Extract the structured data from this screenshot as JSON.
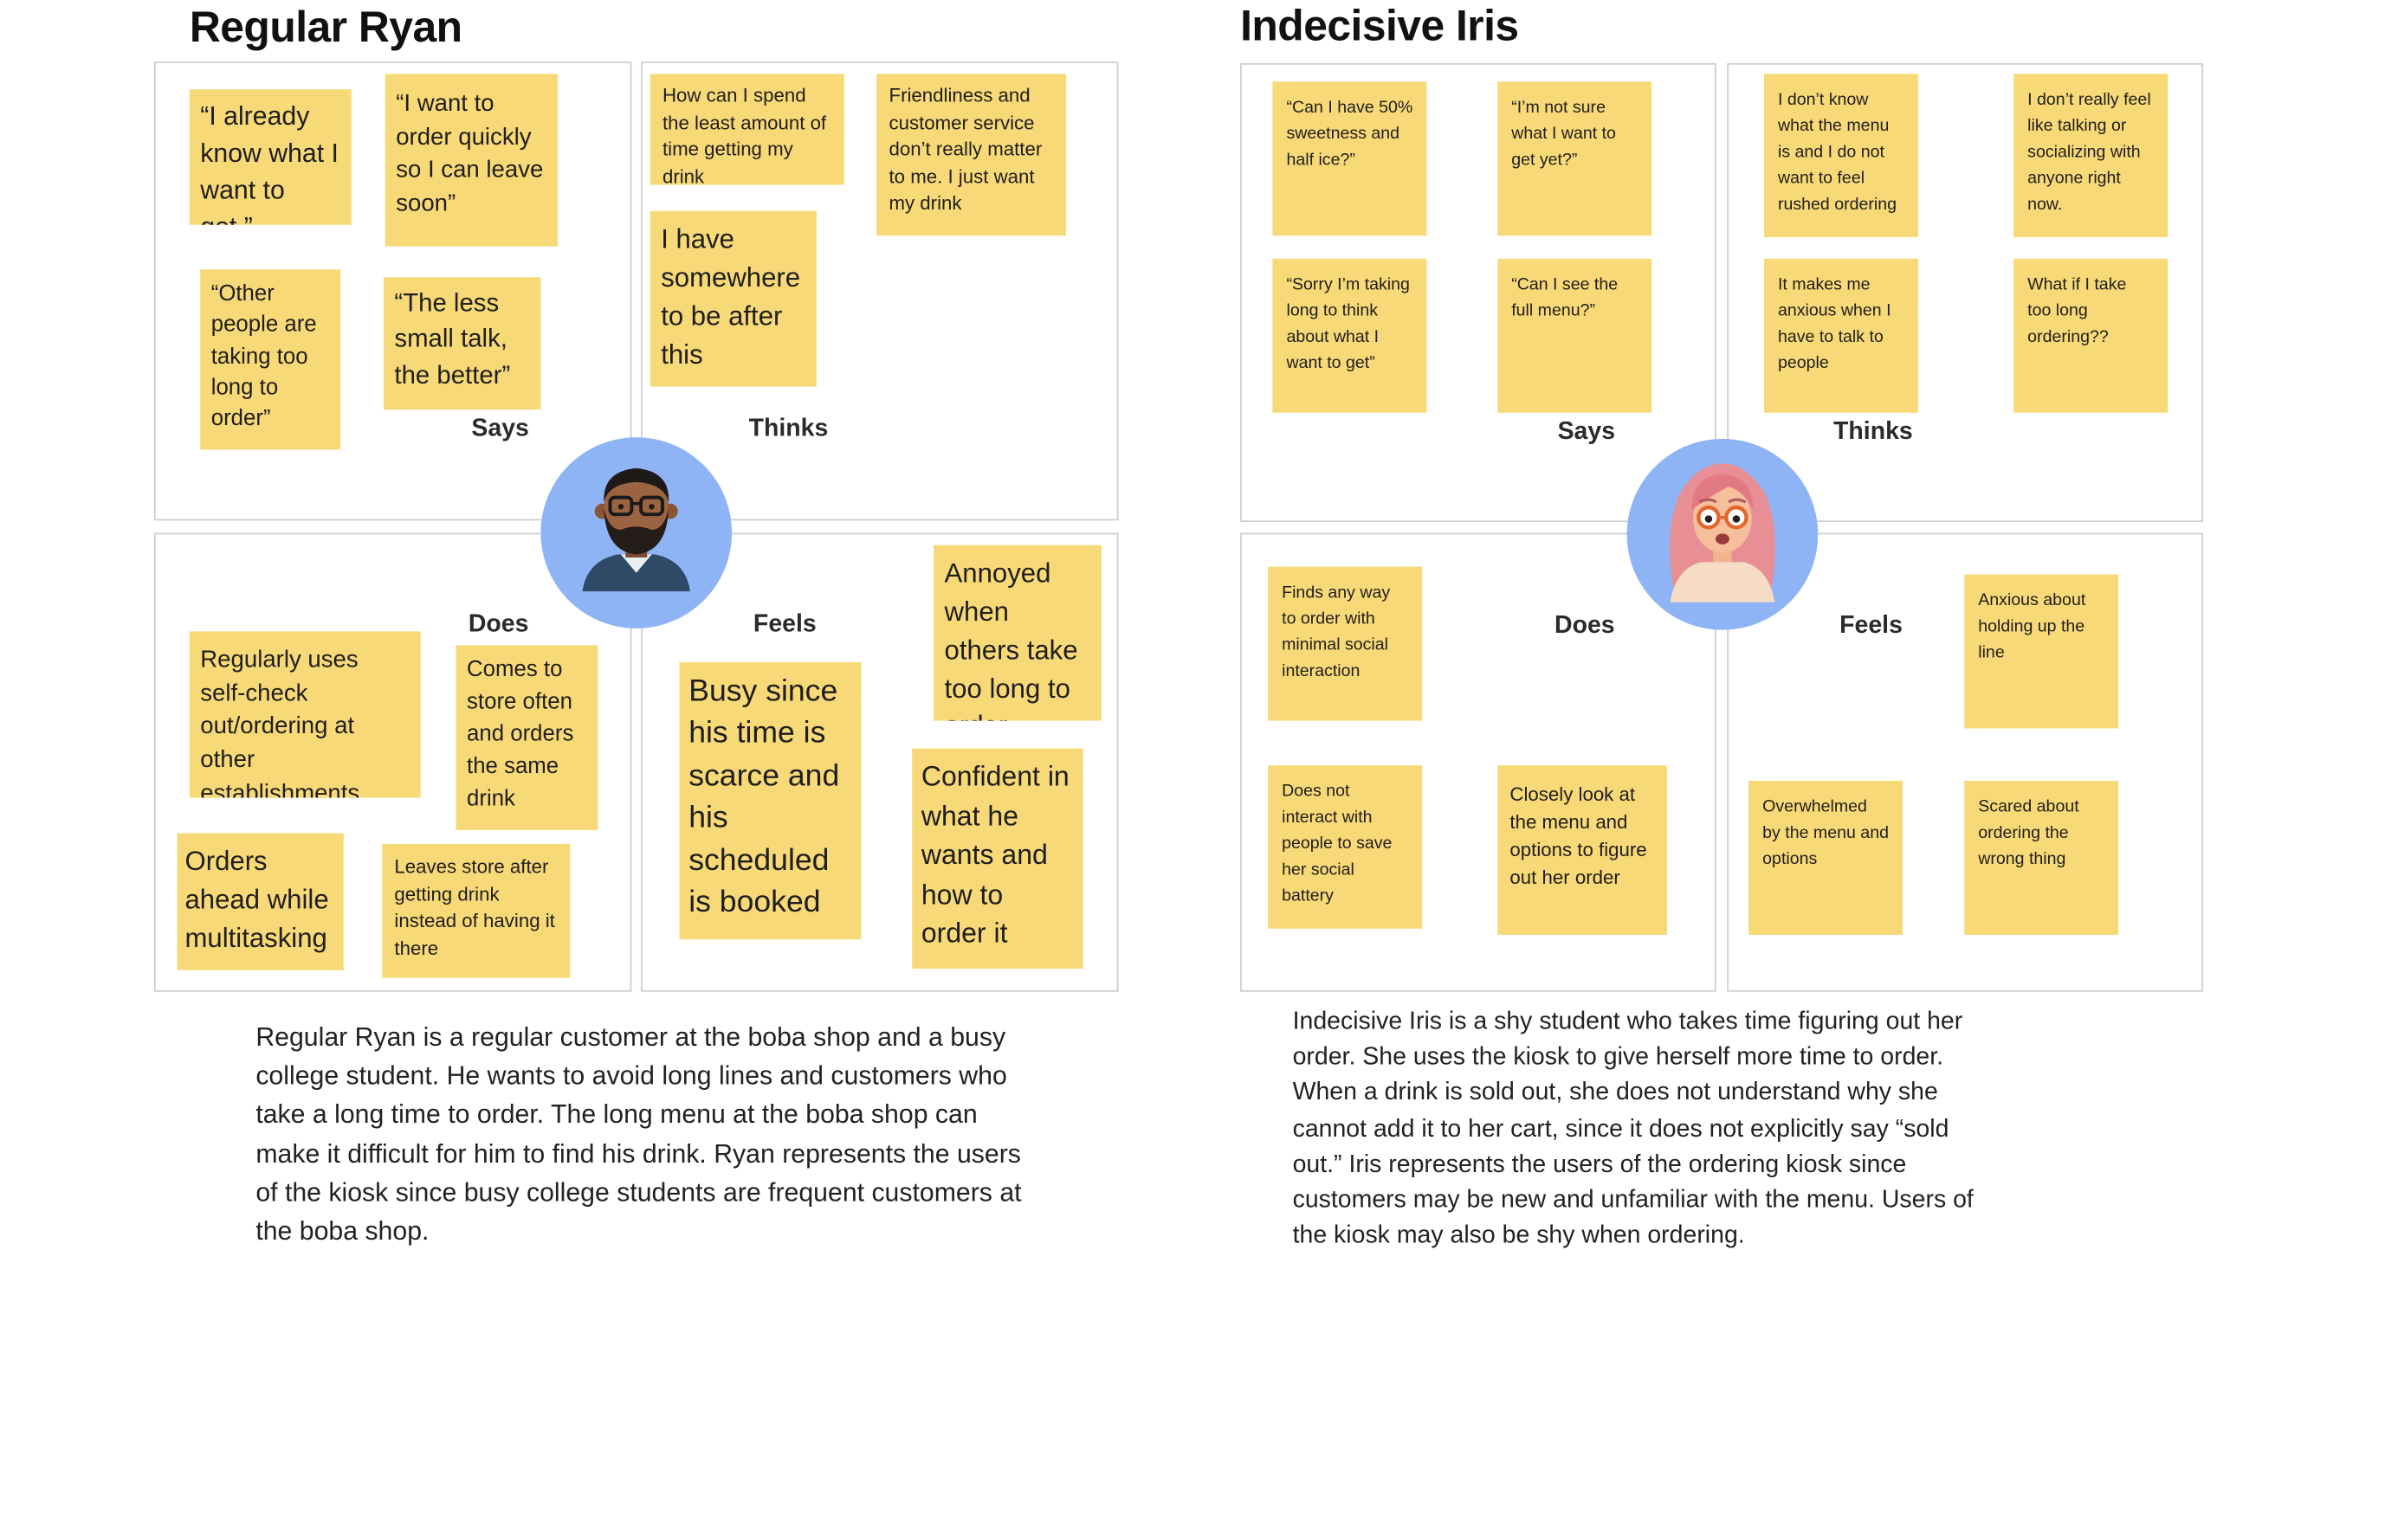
{
  "personas": {
    "ryan": {
      "name": "Regular Ryan",
      "labels": {
        "says": "Says",
        "thinks": "Thinks",
        "does": "Does",
        "feels": "Feels"
      },
      "says": [
        "“I already know what I want to get.”",
        "“I want to order quickly so I can leave soon”",
        "“Other people are taking too long to order”",
        "“The less small talk, the better”"
      ],
      "thinks": [
        "How can I spend the least amount of time getting my drink",
        "Friendliness and customer service don’t really matter to me. I just want my drink",
        "I have somewhere to be after this"
      ],
      "does": [
        "Regularly uses self-check out/ordering at other establishments",
        "Comes to store often and orders the same drink",
        "Orders ahead while multitasking",
        "Leaves store after getting drink instead of having it there"
      ],
      "feels": [
        "Annoyed when others take too long to order",
        "Busy since his time is scarce and his scheduled is booked",
        "Confident in what he wants and how to order it"
      ],
      "description": "Regular Ryan is a regular customer at the boba shop and a busy college student. He wants to avoid long lines and customers who take a long time to order. The long menu at the boba shop can make it difficult for him to find his drink. Ryan represents the users of the kiosk since busy college students are frequent customers at the boba shop."
    },
    "iris": {
      "name": "Indecisive Iris",
      "labels": {
        "says": "Says",
        "thinks": "Thinks",
        "does": "Does",
        "feels": "Feels"
      },
      "says": [
        "“Can I have 50% sweetness and half ice?”",
        "“I’m not sure what I want to get yet?”",
        "“Sorry I’m taking long to think about what I want to get”",
        "“Can I see the full menu?”"
      ],
      "thinks": [
        "I don’t know what the menu is and I do not want to feel rushed ordering",
        "I don’t really feel like talking or socializing with anyone right now.",
        "It makes me anxious when I have to talk to people",
        "What if I take too long ordering??"
      ],
      "does": [
        "Finds any way to order with minimal social interaction",
        "Does not interact with people to save her social battery",
        "Closely look at the menu and options to figure out her order"
      ],
      "feels": [
        "Anxious about holding up the line",
        "Overwhelmed by the menu and options",
        "Scared about ordering the wrong thing"
      ],
      "description": "Indecisive Iris is a shy student who takes time figuring out her order. She uses the kiosk to give herself more time to order. When a drink is sold out, she does not understand why she cannot add it to her cart, since it does not explicitly say “sold out.” Iris represents the users of the ordering kiosk since customers may be new and unfamiliar with the menu. Users of the kiosk may also be shy when ordering."
    }
  },
  "colors": {
    "sticky_note": "#f8d977",
    "avatar_background": "#8fb4f5",
    "quadrant_border": "#cfcfcf",
    "text": "#1e1e1e"
  },
  "icons": {
    "ryan_avatar": "bearded-man-with-glasses-avatar",
    "iris_avatar": "pink-haired-woman-with-glasses-avatar"
  }
}
